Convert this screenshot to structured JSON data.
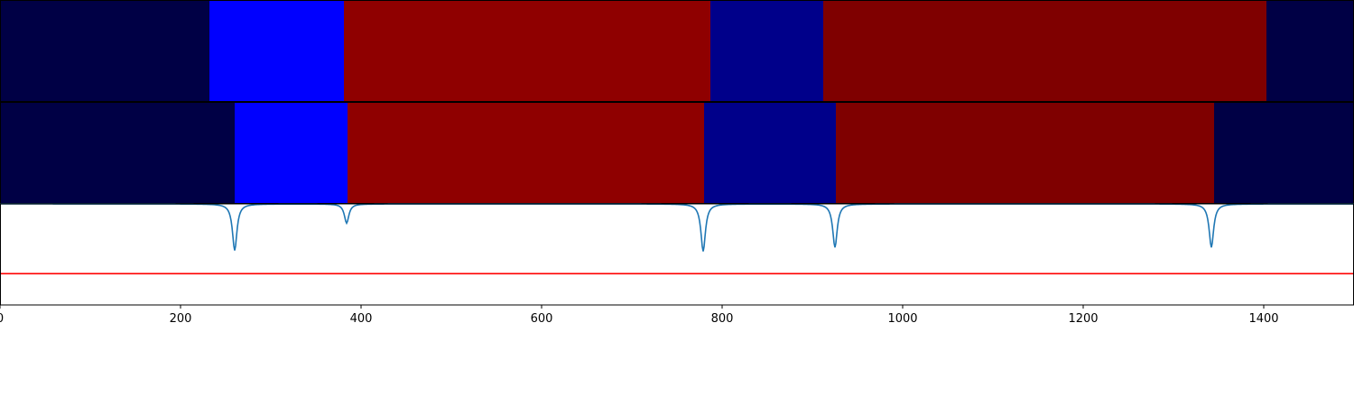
{
  "chart_data": [
    {
      "type": "heatmap",
      "panel": "top-strip",
      "segments": [
        {
          "start": 0,
          "end": 232,
          "color": "#000045"
        },
        {
          "start": 232,
          "end": 381,
          "color": "#0000ff"
        },
        {
          "start": 381,
          "end": 787,
          "color": "#8f0000"
        },
        {
          "start": 787,
          "end": 912,
          "color": "#00008a"
        },
        {
          "start": 912,
          "end": 1403,
          "color": "#7f0000"
        },
        {
          "start": 1403,
          "end": 1500,
          "color": "#000045"
        }
      ]
    },
    {
      "type": "heatmap",
      "panel": "middle-strip",
      "segments": [
        {
          "start": 0,
          "end": 260,
          "color": "#000045"
        },
        {
          "start": 260,
          "end": 385,
          "color": "#0000ff"
        },
        {
          "start": 385,
          "end": 780,
          "color": "#8f0000"
        },
        {
          "start": 780,
          "end": 926,
          "color": "#00008a"
        },
        {
          "start": 926,
          "end": 1345,
          "color": "#7f0000"
        },
        {
          "start": 1345,
          "end": 1500,
          "color": "#000045"
        }
      ]
    },
    {
      "type": "line",
      "panel": "bottom",
      "xlim": [
        0,
        1500
      ],
      "ylim": [
        0,
        1
      ],
      "baseline": 1.0,
      "threshold": 0.31,
      "dips": [
        {
          "x": 260,
          "depth": 0.46
        },
        {
          "x": 384,
          "depth": 0.19
        },
        {
          "x": 779,
          "depth": 0.47
        },
        {
          "x": 925,
          "depth": 0.43
        },
        {
          "x": 1342,
          "depth": 0.43
        }
      ],
      "series_color": "#1f77b4",
      "threshold_color": "#ff0000",
      "xticks": [
        0,
        200,
        400,
        600,
        800,
        1000,
        1200,
        1400
      ]
    }
  ]
}
